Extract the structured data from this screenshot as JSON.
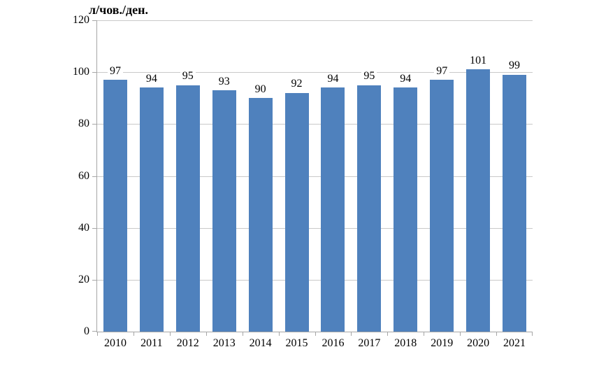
{
  "chart_data": {
    "type": "bar",
    "title": "л/чов./ден.",
    "categories": [
      "2010",
      "2011",
      "2012",
      "2013",
      "2014",
      "2015",
      "2016",
      "2017",
      "2018",
      "2019",
      "2020",
      "2021"
    ],
    "values": [
      97,
      94,
      95,
      93,
      90,
      92,
      94,
      95,
      94,
      97,
      101,
      99
    ],
    "xlabel": "",
    "ylabel": "л/чов./ден.",
    "ylim": [
      0,
      120
    ],
    "ytick_step": 20,
    "yticks": [
      0,
      20,
      40,
      60,
      80,
      100,
      120
    ],
    "grid": "horizontal",
    "legend_position": "none",
    "data_labels": true,
    "colors": {
      "bar": "#4f81bd",
      "gridline": "#c9c9c9",
      "axis": "#a6a6a6",
      "text": "#000000",
      "background": "#ffffff"
    }
  }
}
